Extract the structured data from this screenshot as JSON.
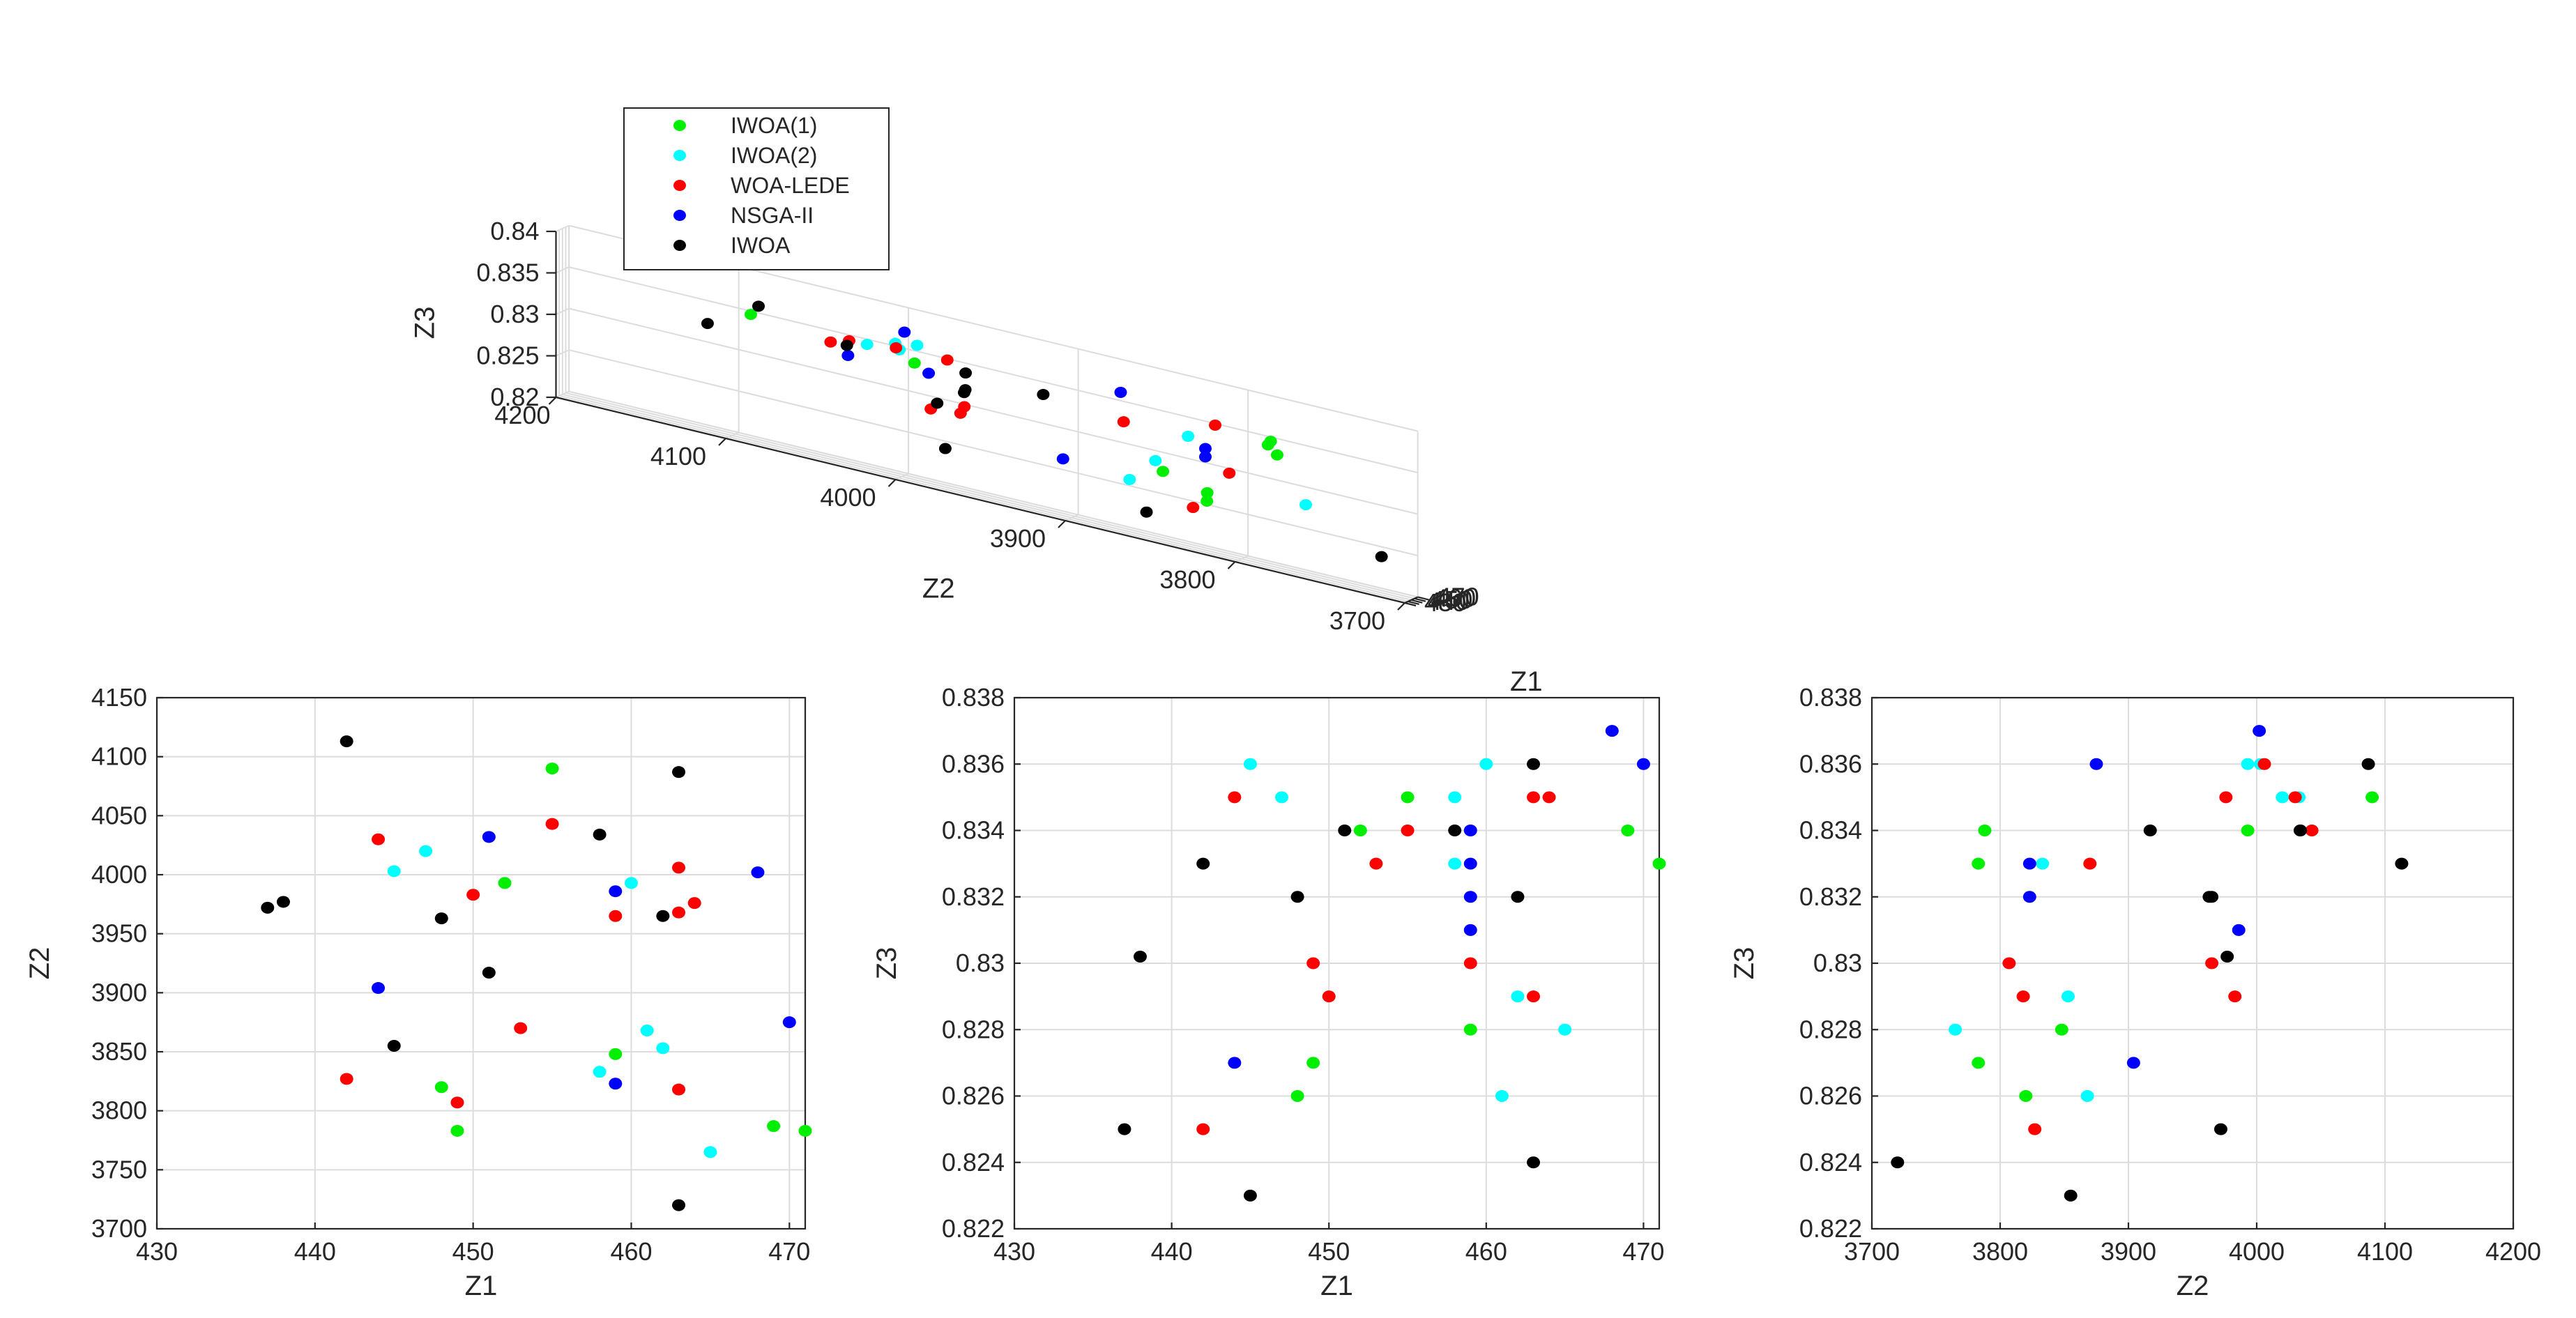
{
  "colors": {
    "IWOA(1)": "#00ee00",
    "IWOA(2)": "#00ffff",
    "WOA-LEDE": "#ff0000",
    "NSGA-II": "#0000ff",
    "IWOA": "#000000"
  },
  "chart_data": [
    {
      "type": "scatter3d",
      "title": "",
      "xlabel": "Z1",
      "ylabel": "Z2",
      "zlabel": "Z3",
      "xlim": [
        430,
        470
      ],
      "ylim": [
        3700,
        4200
      ],
      "zlim": [
        0.82,
        0.84
      ],
      "xticks": [
        "430",
        "440",
        "450",
        "460",
        "470"
      ],
      "yticks": [
        "3700",
        "3800",
        "3900",
        "4000",
        "4100",
        "4200"
      ],
      "zticks": [
        "0.82",
        "0.825",
        "0.83",
        "0.835",
        "0.84"
      ],
      "legend": {
        "position": "top-left",
        "entries": [
          "IWOA(1)",
          "IWOA(2)",
          "WOA-LEDE",
          "NSGA-II",
          "IWOA"
        ]
      },
      "series": [
        {
          "name": "IWOA(1)",
          "points": [
            [
              451,
              3783,
              0.835
            ],
            [
              452,
              3993,
              0.834
            ],
            [
              455,
              4090,
              0.835
            ],
            [
              448,
              3820,
              0.826
            ],
            [
              459,
              3848,
              0.828
            ],
            [
              469,
              3788,
              0.834
            ],
            [
              471,
              3783,
              0.833
            ],
            [
              449,
              3820,
              0.827
            ]
          ]
        },
        {
          "name": "IWOA(2)",
          "points": [
            [
              445,
              4003,
              0.836
            ],
            [
              447,
              4020,
              0.835
            ],
            [
              458,
              3833,
              0.833
            ],
            [
              460,
              3993,
              0.836
            ],
            [
              461,
              3868,
              0.826
            ],
            [
              462,
              3853,
              0.829
            ],
            [
              465,
              3765,
              0.828
            ],
            [
              458,
              4003,
              0.835
            ]
          ]
        },
        {
          "name": "WOA-LEDE",
          "points": [
            [
              442,
              3827,
              0.825
            ],
            [
              444,
              4030,
              0.835
            ],
            [
              449,
              3807,
              0.83
            ],
            [
              450,
              3983,
              0.829
            ],
            [
              453,
              3870,
              0.833
            ],
            [
              455,
              4043,
              0.834
            ],
            [
              459,
              3965,
              0.83
            ],
            [
              463,
              4006,
              0.835
            ],
            [
              463,
              3968,
              0.829
            ],
            [
              464,
              3976,
              0.835
            ],
            [
              463,
              3818,
              0.835
            ]
          ]
        },
        {
          "name": "NSGA-II",
          "points": [
            [
              444,
              3904,
              0.827
            ],
            [
              451,
              4032,
              0.833
            ],
            [
              459,
              3986,
              0.833
            ],
            [
              459,
              3823,
              0.832
            ],
            [
              468,
              4002,
              0.837
            ],
            [
              470,
              3875,
              0.836
            ],
            [
              459,
              3823,
              0.831
            ]
          ]
        },
        {
          "name": "IWOA",
          "points": [
            [
              437,
              3972,
              0.825
            ],
            [
              438,
              3977,
              0.8302
            ],
            [
              442,
              4113,
              0.833
            ],
            [
              445,
              3855,
              0.823
            ],
            [
              448,
              3963,
              0.832
            ],
            [
              451,
              3917,
              0.834
            ],
            [
              458,
              4034,
              0.834
            ],
            [
              462,
              3965,
              0.832
            ],
            [
              463,
              4087,
              0.836
            ],
            [
              463,
              3720,
              0.824
            ],
            [
              463,
              3965,
              0.834
            ]
          ]
        }
      ]
    },
    {
      "type": "scatter",
      "title": "",
      "xlabel": "Z1",
      "ylabel": "Z2",
      "xlim": [
        430,
        471
      ],
      "ylim": [
        3700,
        4150
      ],
      "xticks": [
        430,
        440,
        450,
        460,
        470
      ],
      "yticks": [
        3700,
        3750,
        3800,
        3850,
        3900,
        3950,
        4000,
        4050,
        4100,
        4150
      ],
      "grid": true,
      "series": [
        {
          "name": "IWOA(1)",
          "x": [
            448,
            449,
            452,
            455,
            459,
            469,
            471
          ],
          "y": [
            3820,
            3783,
            3993,
            4090,
            3848,
            3787,
            3783
          ]
        },
        {
          "name": "IWOA(2)",
          "x": [
            445,
            447,
            458,
            460,
            461,
            462,
            465
          ],
          "y": [
            4003,
            4020,
            3833,
            3993,
            3868,
            3853,
            3765
          ]
        },
        {
          "name": "WOA-LEDE",
          "x": [
            442,
            444,
            449,
            450,
            453,
            455,
            459,
            463,
            463,
            464,
            463
          ],
          "y": [
            3827,
            4030,
            3807,
            3983,
            3870,
            4043,
            3965,
            4006,
            3968,
            3976,
            3818
          ]
        },
        {
          "name": "NSGA-II",
          "x": [
            444,
            451,
            459,
            459,
            468,
            470
          ],
          "y": [
            3904,
            4032,
            3986,
            3823,
            4002,
            3875
          ]
        },
        {
          "name": "IWOA",
          "x": [
            437,
            438,
            442,
            445,
            448,
            451,
            458,
            462,
            463,
            463
          ],
          "y": [
            3972,
            3977,
            4113,
            3855,
            3963,
            3917,
            4034,
            3965,
            4087,
            3720
          ]
        }
      ]
    },
    {
      "type": "scatter",
      "title": "",
      "xlabel": "Z1",
      "ylabel": "Z3",
      "xlim": [
        430,
        471
      ],
      "ylim": [
        0.822,
        0.838
      ],
      "xticks": [
        430,
        440,
        450,
        460,
        470
      ],
      "yticks": [
        "0.822",
        "0.824",
        "0.826",
        "0.828",
        "0.83",
        "0.832",
        "0.834",
        "0.836",
        "0.838"
      ],
      "grid": true,
      "series": [
        {
          "name": "IWOA(1)",
          "x": [
            448,
            449,
            452,
            455,
            459,
            469,
            471
          ],
          "y": [
            0.826,
            0.827,
            0.834,
            0.835,
            0.828,
            0.834,
            0.833
          ]
        },
        {
          "name": "IWOA(2)",
          "x": [
            445,
            447,
            458,
            458,
            460,
            461,
            462,
            465
          ],
          "y": [
            0.836,
            0.835,
            0.835,
            0.833,
            0.836,
            0.826,
            0.829,
            0.828
          ]
        },
        {
          "name": "WOA-LEDE",
          "x": [
            442,
            444,
            449,
            450,
            453,
            455,
            459,
            463,
            463,
            464
          ],
          "y": [
            0.825,
            0.835,
            0.83,
            0.829,
            0.833,
            0.834,
            0.83,
            0.835,
            0.829,
            0.835
          ]
        },
        {
          "name": "NSGA-II",
          "x": [
            444,
            459,
            459,
            459,
            459,
            468,
            470
          ],
          "y": [
            0.827,
            0.833,
            0.832,
            0.831,
            0.834,
            0.837,
            0.836
          ]
        },
        {
          "name": "IWOA",
          "x": [
            437,
            438,
            442,
            445,
            448,
            451,
            458,
            462,
            463,
            463
          ],
          "y": [
            0.825,
            0.8302,
            0.833,
            0.823,
            0.832,
            0.834,
            0.834,
            0.832,
            0.836,
            0.824
          ]
        }
      ]
    },
    {
      "type": "scatter",
      "title": "",
      "xlabel": "Z2",
      "ylabel": "Z3",
      "xlim": [
        3700,
        4200
      ],
      "ylim": [
        0.822,
        0.838
      ],
      "xticks": [
        3700,
        3800,
        3900,
        4000,
        4100,
        4200
      ],
      "yticks": [
        "0.822",
        "0.824",
        "0.826",
        "0.828",
        "0.83",
        "0.832",
        "0.834",
        "0.836",
        "0.838"
      ],
      "grid": true,
      "series": [
        {
          "name": "IWOA(1)",
          "x": [
            3783,
            3788,
            3783,
            3820,
            3848,
            3993,
            4090
          ],
          "y": [
            0.833,
            0.834,
            0.827,
            0.826,
            0.828,
            0.834,
            0.835
          ]
        },
        {
          "name": "IWOA(2)",
          "x": [
            3765,
            3833,
            3853,
            3868,
            3993,
            4003,
            4020,
            4033
          ],
          "y": [
            0.828,
            0.833,
            0.829,
            0.826,
            0.836,
            0.836,
            0.835,
            0.835
          ]
        },
        {
          "name": "WOA-LEDE",
          "x": [
            3807,
            3818,
            3827,
            3870,
            3965,
            3976,
            3983,
            4006,
            4030,
            4043
          ],
          "y": [
            0.83,
            0.829,
            0.825,
            0.833,
            0.83,
            0.835,
            0.829,
            0.836,
            0.835,
            0.834
          ]
        },
        {
          "name": "NSGA-II",
          "x": [
            3823,
            3823,
            3875,
            3904,
            3986,
            4002
          ],
          "y": [
            0.833,
            0.832,
            0.836,
            0.827,
            0.831,
            0.837
          ]
        },
        {
          "name": "IWOA",
          "x": [
            3720,
            3855,
            3917,
            3963,
            3965,
            3972,
            3977,
            4034,
            4034,
            4087,
            4113
          ],
          "y": [
            0.824,
            0.823,
            0.834,
            0.832,
            0.832,
            0.825,
            0.8302,
            0.834,
            0.834,
            0.836,
            0.833
          ]
        }
      ]
    }
  ]
}
